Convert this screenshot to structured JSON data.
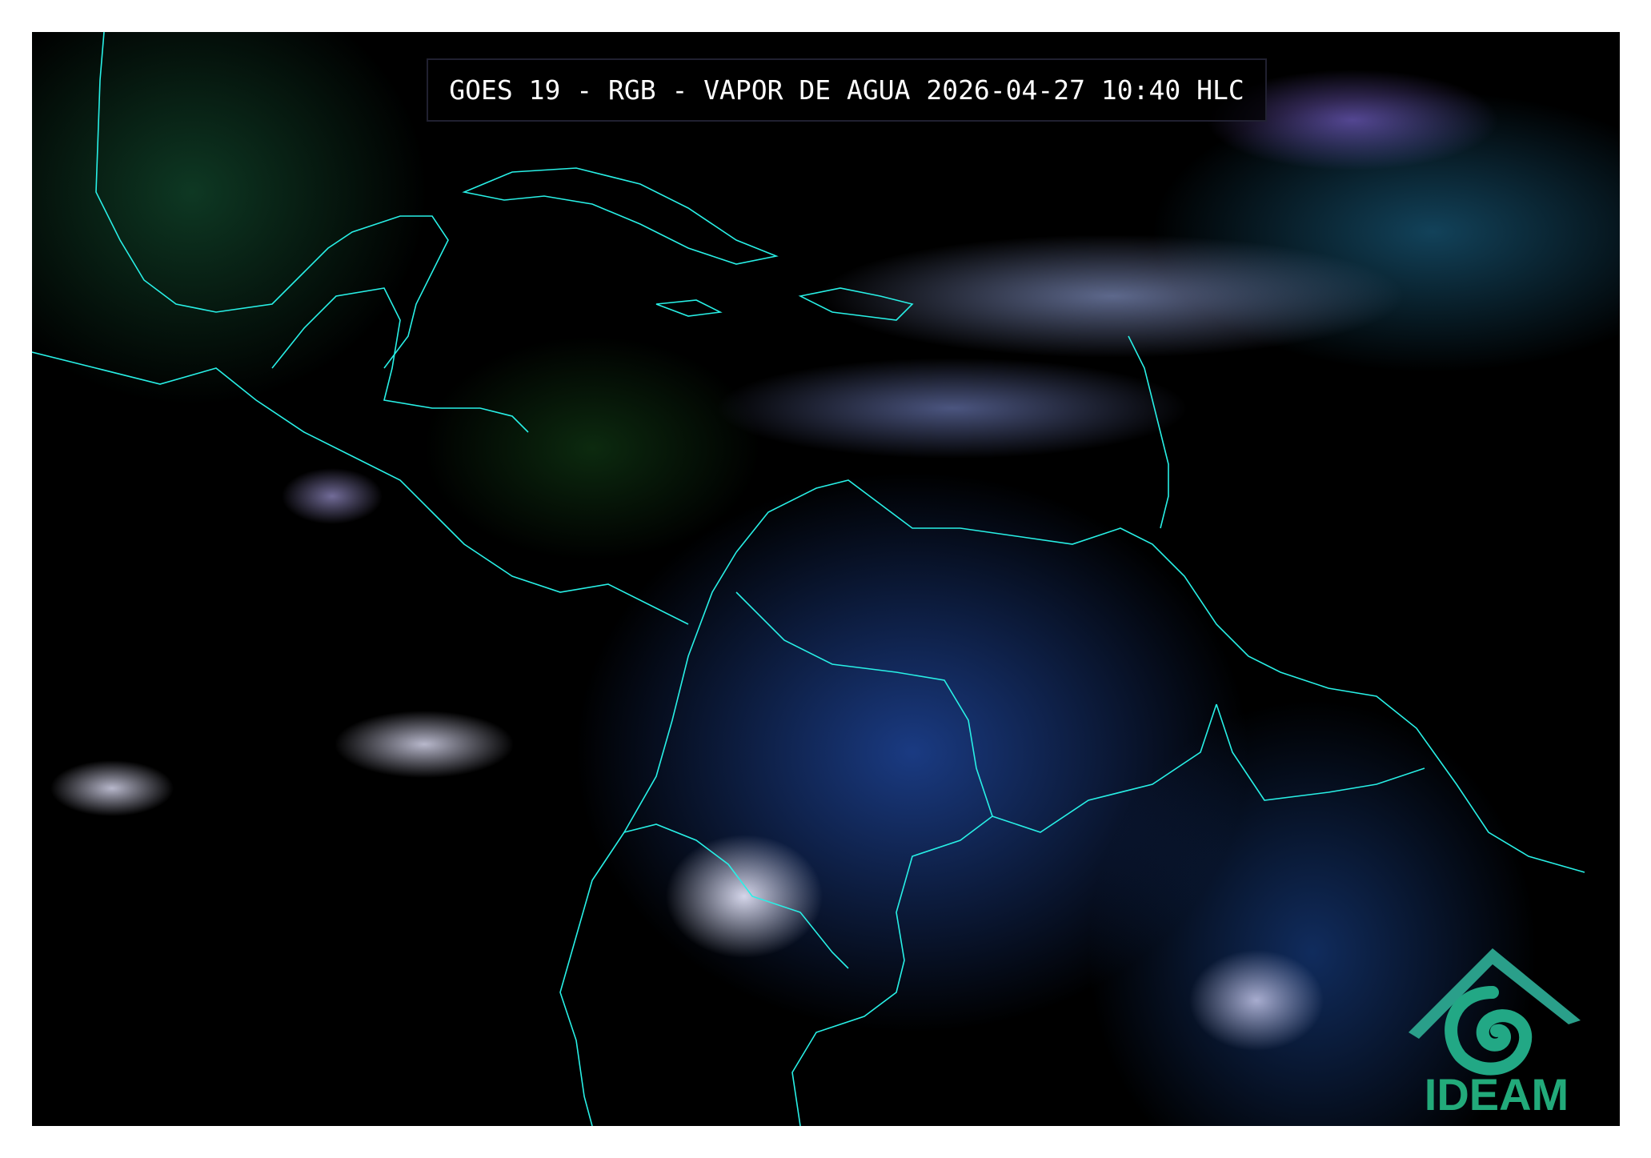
{
  "title": "GOES 19 - RGB - VAPOR DE AGUA 2026-04-27 10:40 HLC",
  "logo": {
    "text": "IDEAM",
    "color": "#22aa7a"
  },
  "colors": {
    "border": "#28f0e6",
    "background": "#000000",
    "frame": "#ffffff"
  }
}
